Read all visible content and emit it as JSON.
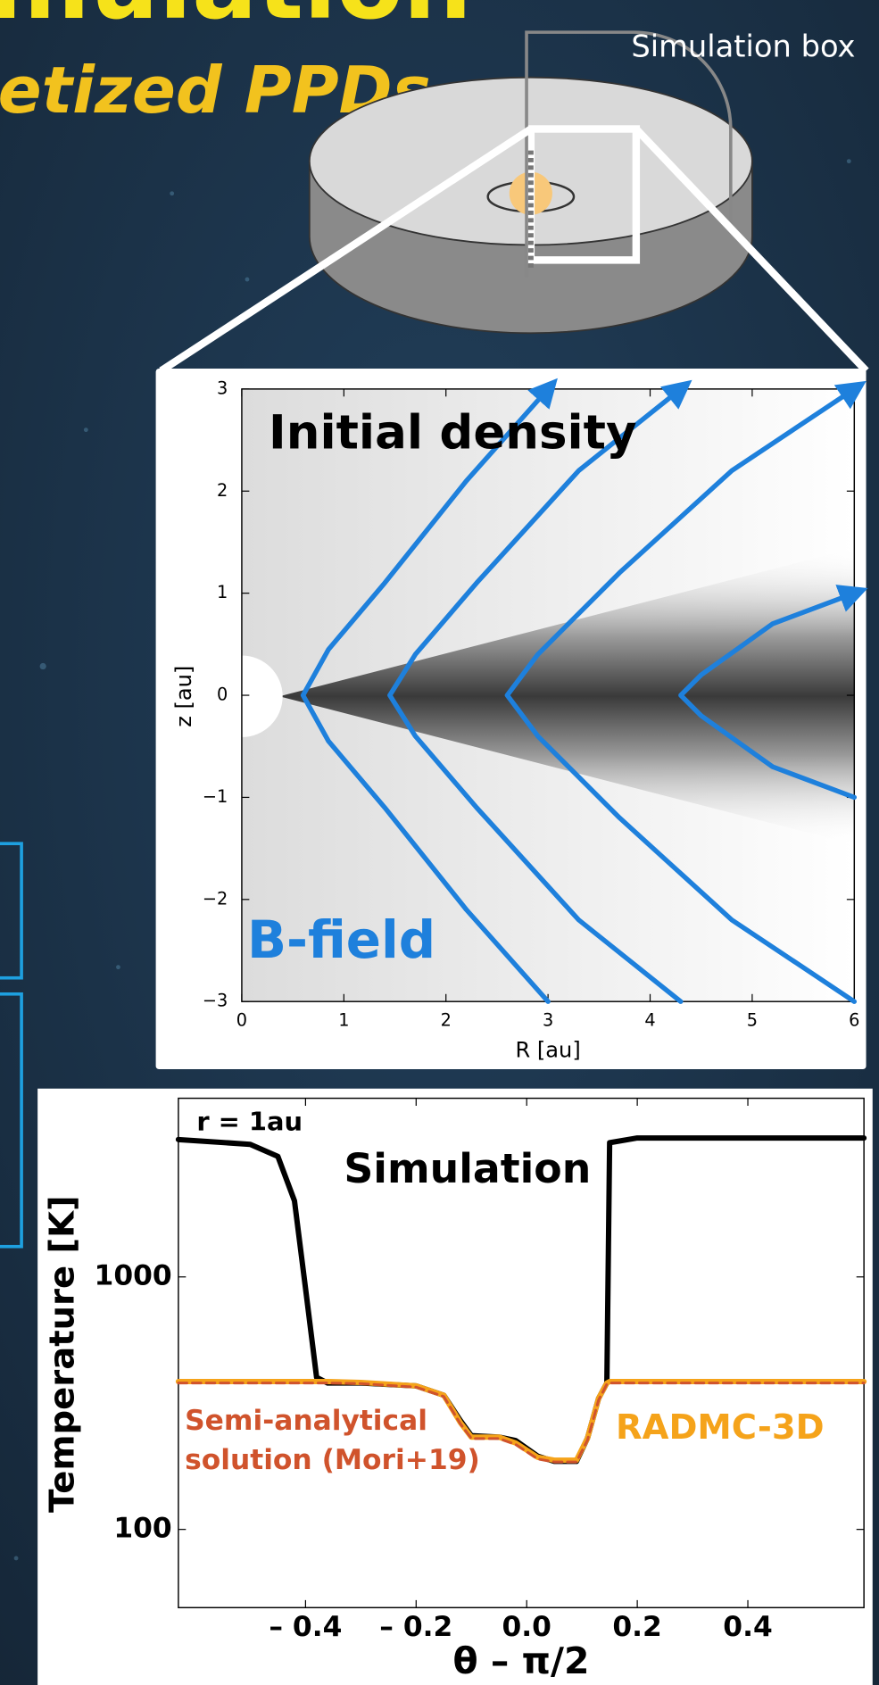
{
  "header": {
    "title": "mulation",
    "subtitle": "etized PPDs",
    "box_label": "Simulation box"
  },
  "chart_data": [
    {
      "type": "line",
      "title": "Initial density",
      "annotation": "B-field",
      "x_label": "R [au]",
      "y_label": "z [au]",
      "xlim": [
        0,
        6
      ],
      "ylim": [
        -3,
        3
      ],
      "xticks": [
        0,
        1,
        2,
        3,
        4,
        5,
        6
      ],
      "yticks": [
        {
          "value": -3,
          "label": "−3"
        },
        {
          "value": -2,
          "label": "−2"
        },
        {
          "value": -1,
          "label": "−1"
        },
        0,
        1,
        2,
        3
      ],
      "series": [
        {
          "color": "#1e80dc",
          "x": [
            3.0,
            2.2,
            1.4,
            0.85,
            0.6,
            0.85,
            1.4,
            2.2,
            3.0
          ],
          "values": [
            3,
            2.1,
            1.1,
            0.45,
            0,
            -0.45,
            -1.1,
            -2.1,
            -3
          ]
        },
        {
          "color": "#1e80dc",
          "x": [
            4.3,
            3.3,
            2.3,
            1.7,
            1.45,
            1.7,
            2.3,
            3.3,
            4.3
          ],
          "values": [
            3,
            2.2,
            1.1,
            0.4,
            0,
            -0.4,
            -1.1,
            -2.2,
            -3
          ]
        },
        {
          "color": "#1e80dc",
          "x": [
            6.0,
            4.8,
            3.7,
            2.9,
            2.6,
            2.9,
            3.7,
            4.8,
            6.0
          ],
          "values": [
            3,
            2.2,
            1.2,
            0.4,
            0,
            -0.4,
            -1.2,
            -2.2,
            -3
          ]
        },
        {
          "color": "#1e80dc",
          "x": [
            6.0,
            5.2,
            4.5,
            4.3,
            4.5,
            5.2,
            6.0
          ],
          "values": [
            1.0,
            0.7,
            0.2,
            0,
            -0.2,
            -0.7,
            -1.0
          ]
        }
      ]
    },
    {
      "type": "line",
      "log_y": true,
      "annotation": "r = 1au",
      "x_label": "θ – π/2",
      "y_label": "Temperature [K]",
      "xlim": [
        -0.63,
        0.61
      ],
      "ylim": [
        49,
        5100
      ],
      "xticks": [
        {
          "value": -0.4,
          "label": "– 0.4"
        },
        {
          "value": -0.2,
          "label": "– 0.2"
        },
        {
          "value": 0,
          "label": "0.0"
        },
        0.2,
        0.4
      ],
      "yticks": [
        100,
        1000
      ],
      "x": [
        -0.63,
        -0.5,
        -0.45,
        -0.42,
        -0.4,
        -0.38,
        -0.36,
        -0.3,
        -0.2,
        -0.15,
        -0.12,
        -0.1,
        -0.05,
        -0.02,
        0.02,
        0.05,
        0.09,
        0.11,
        0.13,
        0.145,
        0.15,
        0.2,
        0.4,
        0.61
      ],
      "series": [
        {
          "name": "Simulation",
          "color": "#000000",
          "values": [
            3500,
            3350,
            3000,
            2000,
            900,
            400,
            380,
            380,
            370,
            340,
            270,
            235,
            232,
            225,
            195,
            186,
            186,
            230,
            330,
            380,
            3400,
            3550,
            3550,
            3550
          ]
        },
        {
          "name": "RADMC-3D",
          "color": "#f5a31a",
          "values": [
            385,
            385,
            385,
            385,
            385,
            385,
            385,
            382,
            370,
            340,
            265,
            232,
            232,
            220,
            193,
            188,
            188,
            230,
            330,
            380,
            385,
            385,
            385,
            385
          ]
        },
        {
          "name": "Semi-analytical solution (Mori+19)",
          "color": "#d0532c",
          "dashed": true,
          "values": [
            380,
            380,
            380,
            380,
            380,
            380,
            380,
            378,
            366,
            336,
            262,
            229,
            229,
            217,
            190,
            185,
            185,
            226,
            325,
            376,
            380,
            380,
            380,
            380
          ]
        }
      ]
    }
  ]
}
